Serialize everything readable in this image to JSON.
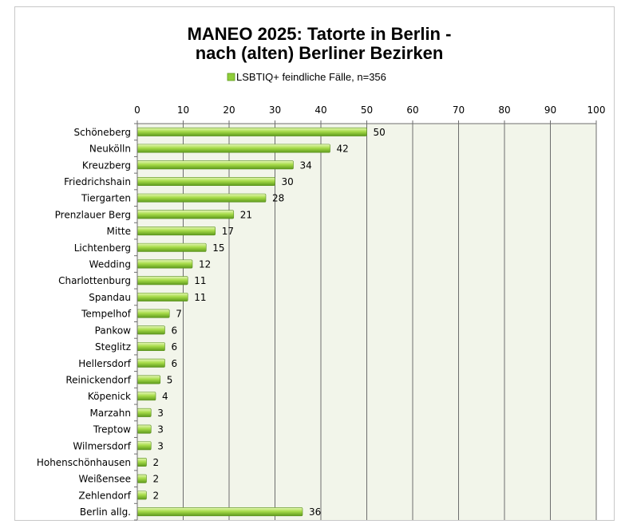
{
  "chart_data": {
    "type": "bar",
    "orientation": "horizontal",
    "title": "MANEO 2025: Tatorte in Berlin -",
    "subtitle": "nach (alten) Berliner Bezirken",
    "xlim": [
      0,
      100
    ],
    "ticks": [
      0,
      10,
      20,
      30,
      40,
      50,
      60,
      70,
      80,
      90,
      100
    ],
    "grid": true,
    "legend_position": "top",
    "series": [
      {
        "name": "LSBTIQ+ feindliche Fälle, n=356",
        "color": "#8fce3a",
        "values": [
          50,
          42,
          34,
          30,
          28,
          21,
          17,
          15,
          12,
          11,
          11,
          7,
          6,
          6,
          6,
          5,
          4,
          3,
          3,
          3,
          2,
          2,
          2,
          36
        ]
      }
    ],
    "categories": [
      "Schöneberg",
      "Neukölln",
      "Kreuzberg",
      "Friedrichshain",
      "Tiergarten",
      "Prenzlauer Berg",
      "Mitte",
      "Lichtenberg",
      "Wedding",
      "Charlottenburg",
      "Spandau",
      "Tempelhof",
      "Pankow",
      "Steglitz",
      "Hellersdorf",
      "Reinickendorf",
      "Köpenick",
      "Marzahn",
      "Treptow",
      "Wilmersdorf",
      "Hohenschönhausen",
      "Weißensee",
      "Zehlendorf",
      "Berlin allg."
    ]
  }
}
